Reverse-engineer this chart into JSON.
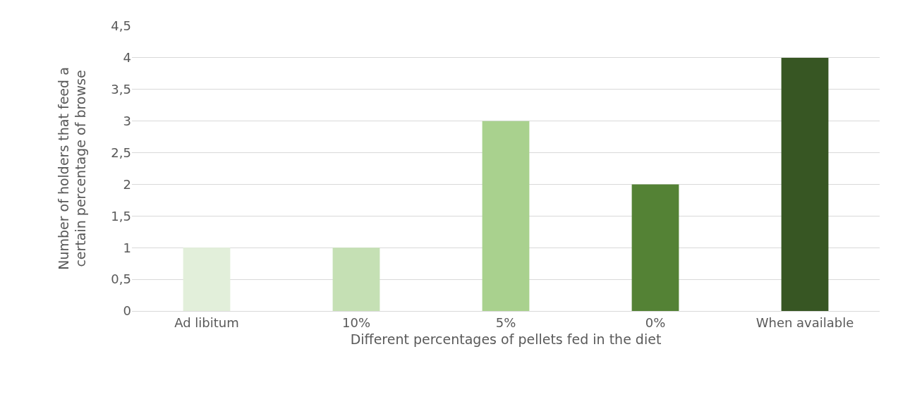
{
  "chart_data": {
    "type": "bar",
    "xlabel": "Different percentages of pellets fed in the diet",
    "ylabel": "Number of holders that feed a certain percentage of browse",
    "categories": [
      "Ad libitum",
      "10%",
      "5%",
      "0%",
      "When available"
    ],
    "values": [
      1,
      1,
      3,
      2,
      4
    ],
    "colors": [
      "#e2efda",
      "#c5e0b4",
      "#a9d18e",
      "#548235",
      "#375623"
    ],
    "ylim": [
      0,
      4.5
    ],
    "yticks": [
      0,
      {
        "value": 0.5,
        "label": "0,5"
      },
      1,
      {
        "value": 1.5,
        "label": "1,5"
      },
      2,
      {
        "value": 2.5,
        "label": "2,5"
      },
      3,
      {
        "value": 3.5,
        "label": "3,5"
      },
      4,
      {
        "value": 4.5,
        "label": "4,5"
      }
    ],
    "grid": "y"
  }
}
